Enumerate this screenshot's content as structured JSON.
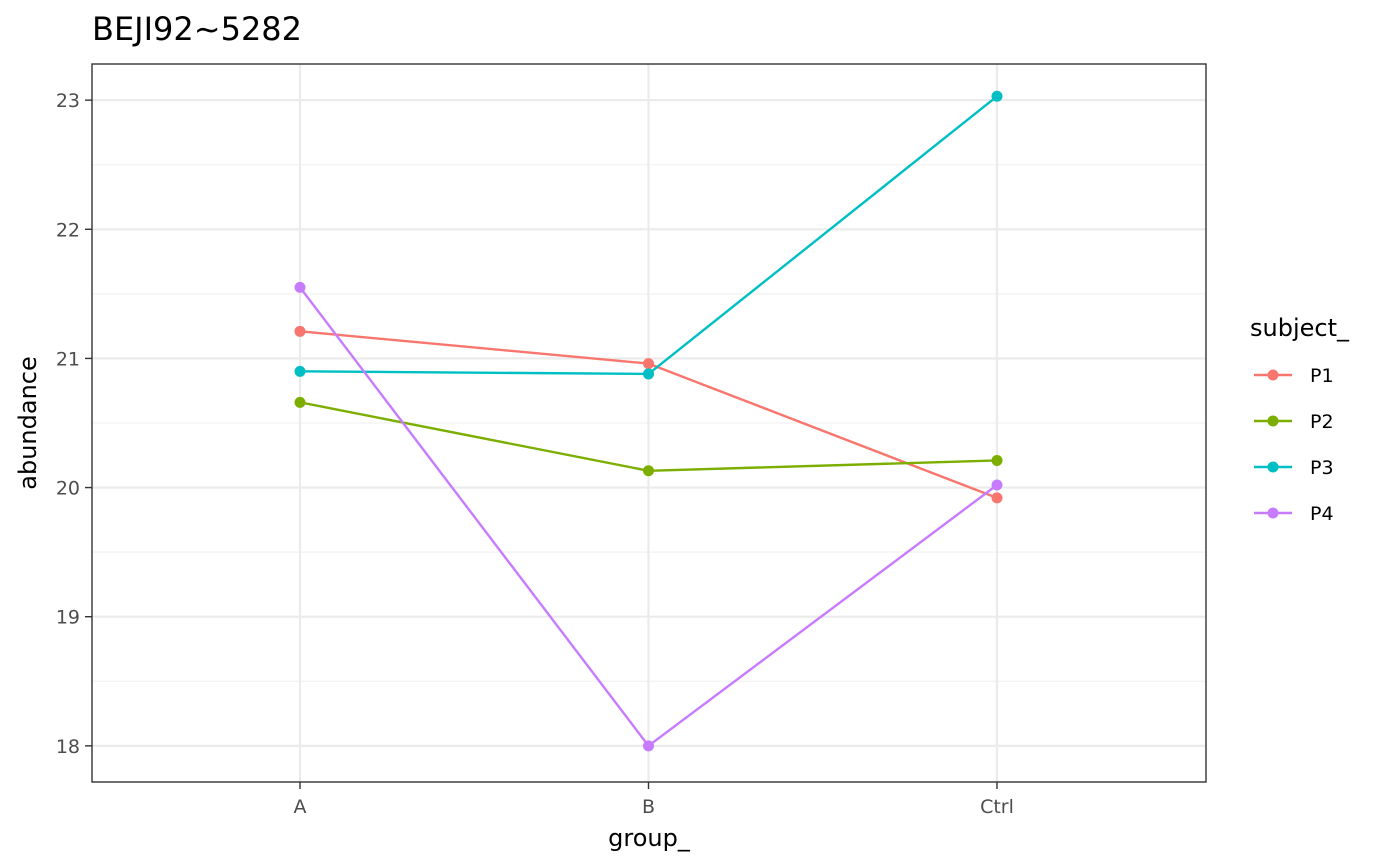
{
  "chart_data": {
    "type": "line",
    "title": "BEJI92~5282",
    "xlabel": "group_",
    "ylabel": "abundance",
    "categories": [
      "A",
      "B",
      "Ctrl"
    ],
    "ylim": [
      17.72,
      23.28
    ],
    "yticks": [
      18,
      19,
      20,
      21,
      22,
      23
    ],
    "grid": true,
    "legend": {
      "title": "subject_",
      "position": "right"
    },
    "series": [
      {
        "name": "P1",
        "color": "#F8766D",
        "values": [
          21.21,
          20.96,
          19.92
        ]
      },
      {
        "name": "P2",
        "color": "#7CAE00",
        "values": [
          20.66,
          20.13,
          20.21
        ]
      },
      {
        "name": "P3",
        "color": "#00BFC4",
        "values": [
          20.9,
          20.88,
          23.03
        ]
      },
      {
        "name": "P4",
        "color": "#C77CFF",
        "values": [
          21.55,
          18.0,
          20.02
        ]
      }
    ]
  }
}
